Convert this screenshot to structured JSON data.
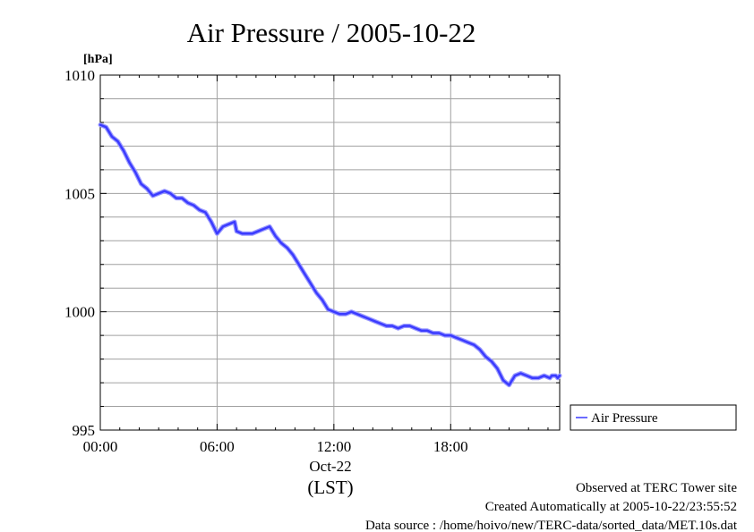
{
  "chart_data": {
    "type": "line",
    "title": "Air Pressure / 2005-10-22",
    "ylabel": "[hPa]",
    "xlabel": "(LST)",
    "date_label": "Oct-22",
    "ylim": [
      995,
      1010
    ],
    "y_major_ticks": [
      995,
      1000,
      1005,
      1010
    ],
    "y_tick_labels": [
      "995",
      "1000",
      "1005",
      "1010"
    ],
    "y_minor_step": 1,
    "xlim_hours": [
      0,
      23.6
    ],
    "x_ticks_hours": [
      0,
      6,
      12,
      18
    ],
    "x_tick_labels": [
      "00:00",
      "06:00",
      "12:00",
      "18:00"
    ],
    "grid": true,
    "legend_position": "outside-right",
    "series": [
      {
        "name": "Air Pressure",
        "color": "#3b3bff",
        "x": [
          0.0,
          0.3,
          0.6,
          0.9,
          1.2,
          1.5,
          1.8,
          2.1,
          2.4,
          2.7,
          3.0,
          3.3,
          3.6,
          3.9,
          4.2,
          4.5,
          4.8,
          5.1,
          5.4,
          5.7,
          6.0,
          6.3,
          6.6,
          6.9,
          7.0,
          7.3,
          7.6,
          7.8,
          8.1,
          8.4,
          8.7,
          9.0,
          9.3,
          9.6,
          9.9,
          10.2,
          10.5,
          10.8,
          11.1,
          11.4,
          11.7,
          12.0,
          12.3,
          12.6,
          12.9,
          13.2,
          13.5,
          13.8,
          14.1,
          14.4,
          14.7,
          15.0,
          15.3,
          15.6,
          15.9,
          16.2,
          16.5,
          16.8,
          17.1,
          17.4,
          17.7,
          18.0,
          18.3,
          18.6,
          18.9,
          19.2,
          19.5,
          19.8,
          20.1,
          20.4,
          20.7,
          21.0,
          21.3,
          21.6,
          21.9,
          22.2,
          22.5,
          22.8,
          23.1,
          23.2,
          23.4,
          23.5,
          23.6
        ],
        "y": [
          1007.9,
          1007.8,
          1007.4,
          1007.2,
          1006.8,
          1006.3,
          1005.9,
          1005.4,
          1005.2,
          1004.9,
          1005.0,
          1005.1,
          1005.0,
          1004.8,
          1004.8,
          1004.6,
          1004.5,
          1004.3,
          1004.2,
          1003.8,
          1003.3,
          1003.6,
          1003.7,
          1003.8,
          1003.4,
          1003.3,
          1003.3,
          1003.3,
          1003.4,
          1003.5,
          1003.6,
          1003.2,
          1002.9,
          1002.7,
          1002.4,
          1002.0,
          1001.6,
          1001.2,
          1000.8,
          1000.5,
          1000.1,
          1000.0,
          999.9,
          999.9,
          1000.0,
          999.9,
          999.8,
          999.7,
          999.6,
          999.5,
          999.4,
          999.4,
          999.3,
          999.4,
          999.4,
          999.3,
          999.2,
          999.2,
          999.1,
          999.1,
          999.0,
          999.0,
          998.9,
          998.8,
          998.7,
          998.6,
          998.4,
          998.1,
          997.9,
          997.6,
          997.1,
          996.9,
          997.3,
          997.4,
          997.3,
          997.2,
          997.2,
          997.3,
          997.2,
          997.3,
          997.3,
          997.2,
          997.3
        ]
      }
    ]
  },
  "footer": {
    "observed": "Observed at TERC Tower site",
    "created": "Created Automatically at 2005-10-22/23:55:52",
    "source": "Data source : /home/hoivo/new/TERC-data/sorted_data/MET.10s.dat"
  }
}
